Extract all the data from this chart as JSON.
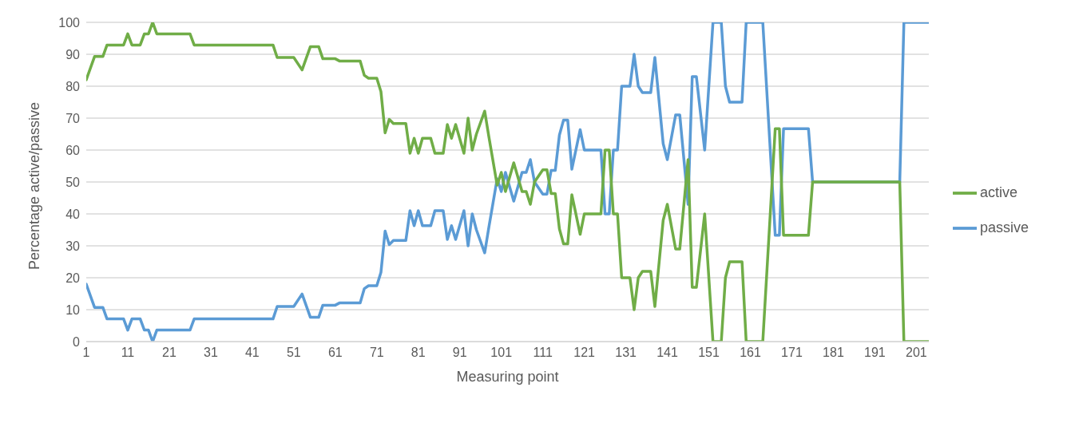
{
  "chart_data": {
    "type": "line",
    "xlabel": "Measuring point",
    "ylabel": "Percentage active/passive",
    "x": [
      1,
      3,
      5,
      6,
      10,
      11,
      12,
      14,
      15,
      16,
      17,
      18,
      26,
      27,
      46,
      47,
      51,
      53,
      55,
      57,
      58,
      61,
      62,
      67,
      68,
      69,
      71,
      72,
      73,
      74,
      75,
      78,
      79,
      80,
      81,
      82,
      84,
      85,
      87,
      88,
      89,
      90,
      92,
      93,
      94,
      95,
      97,
      98,
      100,
      101,
      102,
      104,
      106,
      107,
      108,
      109,
      111,
      112,
      113,
      114,
      115,
      116,
      117,
      118,
      120,
      121,
      125,
      126,
      127,
      128,
      129,
      130,
      132,
      133,
      134,
      135,
      137,
      138,
      140,
      141,
      143,
      144,
      146,
      147,
      148,
      150,
      152,
      154,
      155,
      156,
      159,
      160,
      164,
      167,
      168,
      169,
      175,
      176,
      197,
      198,
      204
    ],
    "series": [
      {
        "name": "passive",
        "color": "#5b9bd5",
        "values": [
          18,
          10.7,
          10.7,
          7.1,
          7.1,
          3.6,
          7.1,
          7.1,
          3.6,
          3.6,
          0,
          3.6,
          3.6,
          7.1,
          7.1,
          11,
          11,
          14.9,
          7.6,
          7.6,
          11.4,
          11.4,
          12.1,
          12.1,
          16.6,
          17.5,
          17.5,
          21.7,
          34.6,
          30.4,
          31.7,
          31.7,
          41,
          36.3,
          41,
          36.3,
          36.3,
          41,
          41,
          32,
          36.3,
          32,
          41,
          30,
          40,
          35,
          27.8,
          35.8,
          51,
          47,
          53,
          44,
          53,
          53,
          57,
          50,
          46.2,
          46.2,
          53.6,
          53.6,
          64.7,
          69.4,
          69.4,
          54,
          66.4,
          60,
          60,
          40,
          40,
          60,
          60,
          80,
          80,
          90,
          80,
          78,
          78,
          89,
          62,
          57,
          71,
          71,
          43,
          83,
          83,
          60,
          100,
          100,
          80,
          75,
          75,
          100,
          100,
          33.3,
          33.3,
          66.7,
          66.7,
          50,
          50,
          100,
          100
        ]
      },
      {
        "name": "active",
        "color": "#70ad47",
        "values": [
          82,
          89.3,
          89.3,
          92.9,
          92.9,
          96.4,
          92.9,
          92.9,
          96.4,
          96.4,
          100,
          96.4,
          96.4,
          92.9,
          92.9,
          89,
          89,
          85.1,
          92.4,
          92.4,
          88.6,
          88.6,
          87.9,
          87.9,
          83.4,
          82.5,
          82.5,
          78.3,
          65.4,
          69.6,
          68.3,
          68.3,
          59,
          63.7,
          59,
          63.7,
          63.7,
          59,
          59,
          68,
          63.7,
          68,
          59,
          70,
          60,
          65,
          72.2,
          64.2,
          49,
          53,
          47,
          56,
          47,
          47,
          43,
          50,
          53.8,
          53.8,
          46.4,
          46.4,
          35.3,
          30.6,
          30.6,
          46,
          33.6,
          40,
          40,
          60,
          60,
          40,
          40,
          20,
          20,
          10,
          20,
          22,
          22,
          11,
          38,
          43,
          29,
          29,
          57,
          17,
          17,
          40,
          0,
          0,
          20,
          25,
          25,
          0,
          0,
          66.7,
          66.7,
          33.3,
          33.3,
          50,
          50,
          0,
          0
        ]
      }
    ],
    "xlim": [
      1,
      204
    ],
    "xticks": [
      1,
      11,
      21,
      31,
      41,
      51,
      61,
      71,
      81,
      91,
      101,
      111,
      121,
      131,
      141,
      151,
      161,
      171,
      181,
      191,
      201
    ],
    "ylim": [
      0,
      100
    ],
    "yticks": [
      0,
      10,
      20,
      30,
      40,
      50,
      60,
      70,
      80,
      90,
      100
    ],
    "grid": "y",
    "legend": "right",
    "marker": "none",
    "line_style": "solid"
  }
}
